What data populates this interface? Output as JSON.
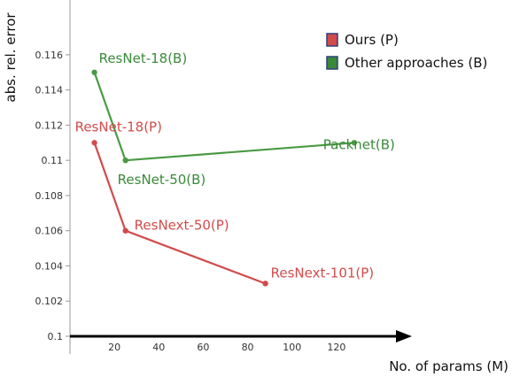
{
  "chart_data": {
    "type": "line",
    "xlabel": "No. of params (M)",
    "ylabel": "abs. rel. error",
    "xlim": [
      0,
      140
    ],
    "ylim": [
      0.1,
      0.117
    ],
    "x_ticks": [
      20,
      40,
      60,
      80,
      100,
      120
    ],
    "y_ticks": [
      0.1,
      0.102,
      0.104,
      0.106,
      0.108,
      0.11,
      0.112,
      0.114,
      0.116
    ],
    "x_tick_labels": [
      "20",
      "40",
      "60",
      "80",
      "100",
      "120"
    ],
    "y_tick_labels": [
      "0.1",
      "0.102",
      "0.104",
      "0.106",
      "0.108",
      "0.11",
      "0.112",
      "0.114",
      "0.116"
    ],
    "grid": false,
    "legend_position": "top-right",
    "series": [
      {
        "name": "Ours (P)",
        "color": "#d24b4b",
        "legend_swatch": "#d24b4b",
        "points": [
          {
            "x": 11,
            "y": 0.111,
            "label": "ResNet-18(P)"
          },
          {
            "x": 25,
            "y": 0.106,
            "label": "ResNext-50(P)"
          },
          {
            "x": 88,
            "y": 0.103,
            "label": "ResNext-101(P)"
          }
        ]
      },
      {
        "name": "Other approaches (B)",
        "color": "#4a9a44",
        "legend_swatch": "#3a8a3a",
        "points": [
          {
            "x": 11,
            "y": 0.115,
            "label": "ResNet-18(B)"
          },
          {
            "x": 25,
            "y": 0.11,
            "label": "ResNet-50(B)"
          },
          {
            "x": 128,
            "y": 0.111,
            "label": "Packnet(B)"
          }
        ]
      }
    ]
  }
}
